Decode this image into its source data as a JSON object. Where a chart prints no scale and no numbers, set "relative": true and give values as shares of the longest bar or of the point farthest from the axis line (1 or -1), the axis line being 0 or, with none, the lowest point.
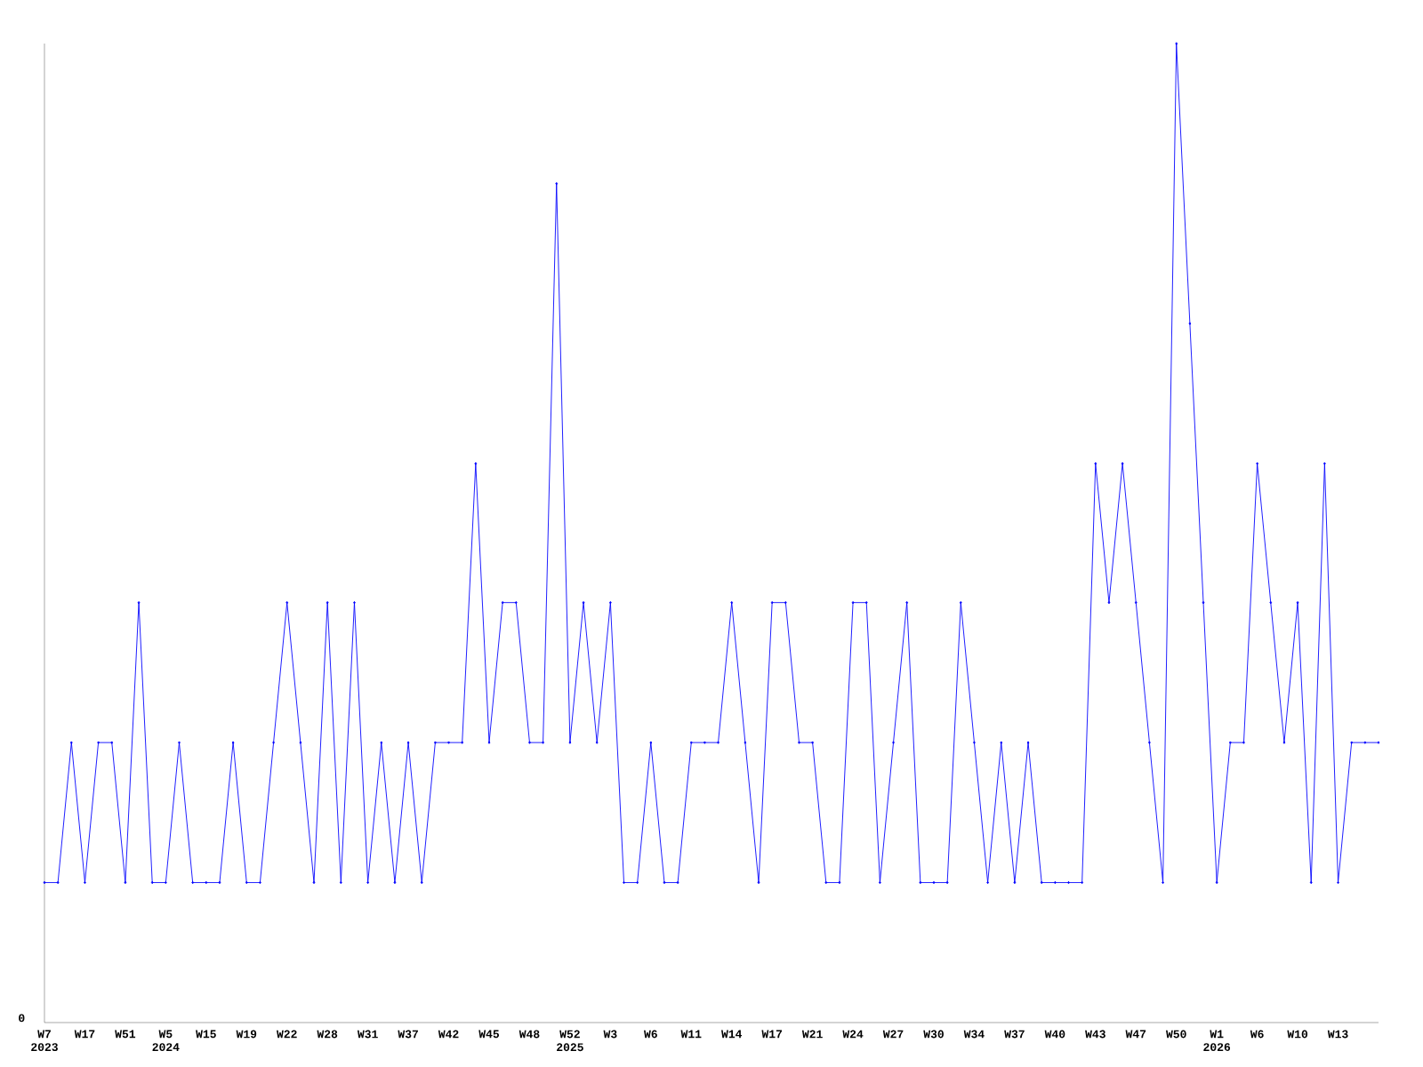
{
  "chart_data": {
    "type": "line",
    "relative": true,
    "marker": "diamond",
    "line_style": "solid",
    "categories": [
      "W7\n2023",
      null,
      null,
      "W17",
      null,
      null,
      "W51",
      null,
      null,
      "W5\n2024",
      null,
      null,
      "W15",
      null,
      null,
      "W19",
      null,
      null,
      "W22",
      null,
      null,
      "W28",
      null,
      null,
      "W31",
      null,
      null,
      "W37",
      null,
      null,
      "W42",
      null,
      null,
      "W45",
      null,
      null,
      "W48",
      null,
      null,
      "W52\n2025",
      null,
      null,
      "W3",
      null,
      null,
      "W6",
      null,
      null,
      "W11",
      null,
      null,
      "W14",
      null,
      null,
      "W17",
      null,
      null,
      "W21",
      null,
      null,
      "W24",
      null,
      null,
      "W27",
      null,
      null,
      "W30",
      null,
      null,
      "W34",
      null,
      null,
      "W37",
      null,
      null,
      "W40",
      null,
      null,
      "W43",
      null,
      null,
      "W47",
      null,
      null,
      "W50",
      null,
      null,
      "W1\n2026",
      null,
      null,
      "W6",
      null,
      null,
      "W10",
      null,
      null,
      "W13",
      null,
      null,
      null
    ],
    "series": [
      {
        "color": "#0000ff",
        "values": [
          0.143,
          0.143,
          0.286,
          0.143,
          0.286,
          0.286,
          0.143,
          0.429,
          0.143,
          0.143,
          0.286,
          0.143,
          0.143,
          0.143,
          0.286,
          0.143,
          0.143,
          0.286,
          0.429,
          0.286,
          0.143,
          0.429,
          0.143,
          0.429,
          0.143,
          0.286,
          0.143,
          0.286,
          0.143,
          0.286,
          0.286,
          0.286,
          0.571,
          0.286,
          0.429,
          0.429,
          0.286,
          0.286,
          0.857,
          0.286,
          0.429,
          0.286,
          0.429,
          0.143,
          0.143,
          0.286,
          0.143,
          0.143,
          0.286,
          0.286,
          0.286,
          0.429,
          0.286,
          0.143,
          0.429,
          0.429,
          0.286,
          0.286,
          0.143,
          0.143,
          0.429,
          0.429,
          0.143,
          0.286,
          0.429,
          0.143,
          0.143,
          0.143,
          0.429,
          0.286,
          0.143,
          0.286,
          0.143,
          0.286,
          0.143,
          0.143,
          0.143,
          0.143,
          0.571,
          0.429,
          0.571,
          0.429,
          0.286,
          0.143,
          1,
          0.714,
          0.429,
          0.143,
          0.286,
          0.286,
          0.571,
          0.429,
          0.286,
          0.429,
          0.143,
          0.571,
          0.143,
          0.286,
          0.286,
          0.286
        ]
      }
    ],
    "annotations": [
      "0"
    ]
  }
}
